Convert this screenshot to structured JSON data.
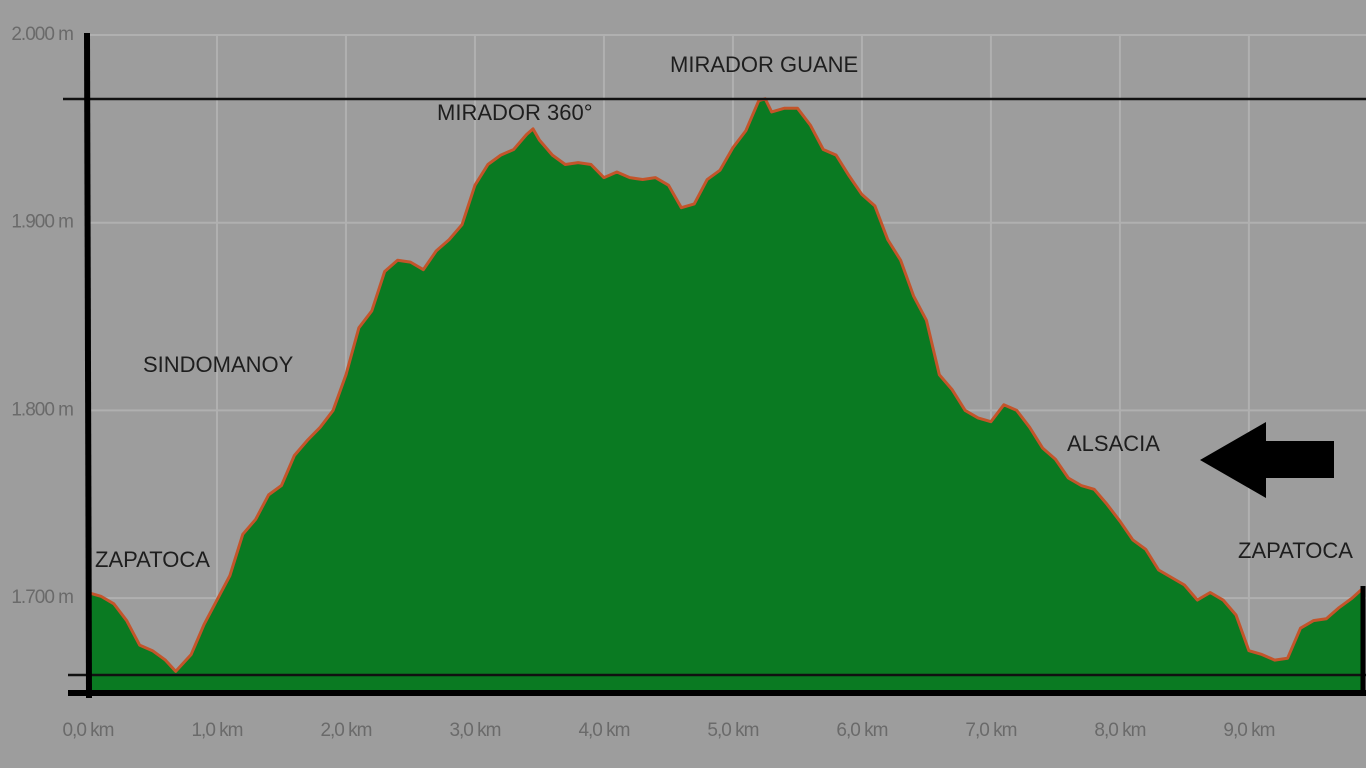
{
  "chart_data": {
    "type": "area",
    "color": "#0a7a22",
    "line_color": "#c4542a",
    "grid": true,
    "x": [
      0,
      0.1,
      0.2,
      0.3,
      0.4,
      0.5,
      0.6,
      0.68,
      0.8,
      0.9,
      1.0,
      1.1,
      1.2,
      1.3,
      1.4,
      1.5,
      1.6,
      1.7,
      1.8,
      1.9,
      2.0,
      2.1,
      2.2,
      2.3,
      2.4,
      2.5,
      2.6,
      2.7,
      2.8,
      2.9,
      3.0,
      3.1,
      3.2,
      3.3,
      3.4,
      3.45,
      3.5,
      3.6,
      3.7,
      3.8,
      3.9,
      4.0,
      4.1,
      4.2,
      4.3,
      4.4,
      4.5,
      4.6,
      4.7,
      4.8,
      4.9,
      5.0,
      5.1,
      5.2,
      5.25,
      5.3,
      5.4,
      5.5,
      5.6,
      5.7,
      5.8,
      5.9,
      6.0,
      6.1,
      6.2,
      6.3,
      6.4,
      6.5,
      6.6,
      6.7,
      6.8,
      6.9,
      7.0,
      7.1,
      7.2,
      7.3,
      7.4,
      7.5,
      7.6,
      7.7,
      7.8,
      7.9,
      8.0,
      8.1,
      8.2,
      8.3,
      8.4,
      8.5,
      8.6,
      8.7,
      8.8,
      8.9,
      9.0,
      9.1,
      9.2,
      9.3,
      9.4,
      9.5,
      9.6,
      9.7,
      9.8,
      9.88
    ],
    "values": [
      1703,
      1701,
      1697,
      1688,
      1675,
      1672,
      1667,
      1661,
      1670,
      1686,
      1699,
      1712,
      1734,
      1742,
      1755,
      1760,
      1776,
      1784,
      1791,
      1800,
      1819,
      1844,
      1853,
      1874,
      1880,
      1879,
      1875,
      1885,
      1891,
      1899,
      1920,
      1931,
      1936,
      1939,
      1947,
      1950,
      1944,
      1936,
      1931,
      1932,
      1931,
      1924,
      1927,
      1924,
      1923,
      1924,
      1920,
      1908,
      1910,
      1923,
      1928,
      1940,
      1949,
      1965,
      1966,
      1959,
      1961,
      1961,
      1952,
      1939,
      1936,
      1925,
      1915,
      1909,
      1891,
      1880,
      1861,
      1848,
      1819,
      1811,
      1800,
      1796,
      1794,
      1803,
      1800,
      1791,
      1780,
      1774,
      1764,
      1760,
      1758,
      1750,
      1741,
      1731,
      1726,
      1715,
      1711,
      1707,
      1699,
      1703,
      1699,
      1691,
      1672,
      1670,
      1667,
      1668,
      1684,
      1688,
      1689,
      1695,
      1700,
      1705
    ],
    "xlim": [
      0,
      9.9
    ],
    "ylim": [
      1650,
      2000
    ],
    "xticks": [
      {
        "value": 0,
        "label": "0,0 km"
      },
      {
        "value": 1,
        "label": "1,0 km"
      },
      {
        "value": 2,
        "label": "2,0 km"
      },
      {
        "value": 3,
        "label": "3,0 km"
      },
      {
        "value": 4,
        "label": "4,0 km"
      },
      {
        "value": 5,
        "label": "5,0 km"
      },
      {
        "value": 6,
        "label": "6,0 km"
      },
      {
        "value": 7,
        "label": "7,0 km"
      },
      {
        "value": 8,
        "label": "8,0 km"
      },
      {
        "value": 9,
        "label": "9,0 km"
      }
    ],
    "yticks": [
      {
        "value": 1700,
        "label": "1.700 m"
      },
      {
        "value": 1800,
        "label": "1.800 m"
      },
      {
        "value": 1900,
        "label": "1.900 m"
      },
      {
        "value": 2000,
        "label": "2.000 m"
      }
    ],
    "annotations": [
      "MIRADOR GUANE",
      "MIRADOR 360°",
      "SINDOMANOY",
      "ALSACIA",
      "ZAPATOCA",
      "ZAPATOCA"
    ]
  }
}
